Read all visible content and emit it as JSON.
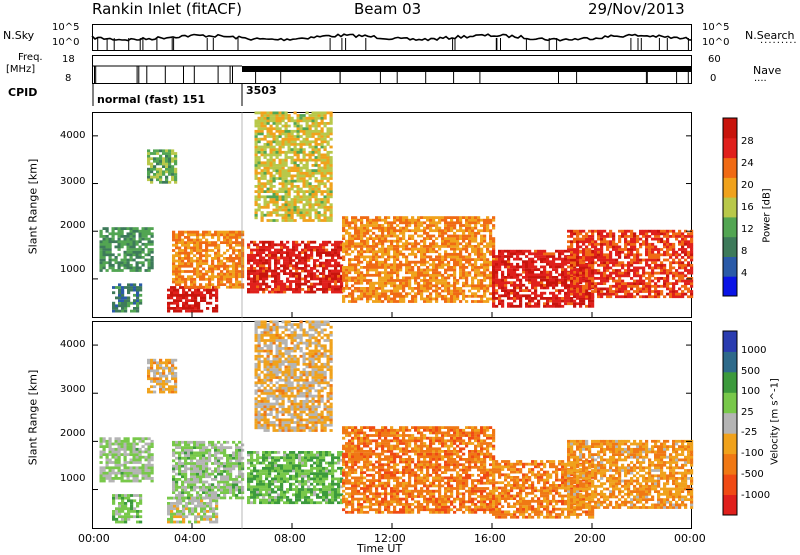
{
  "header": {
    "station": "Rankin Inlet (fitACF)",
    "beam": "Beam 03",
    "date": "29/Nov/2013"
  },
  "strip": {
    "nsky_label": "N.Sky",
    "nsky_ticks": [
      "10^5",
      "10^0"
    ],
    "nsearch_label": "N.Search",
    "nsearch_ticks": [
      "10^5",
      "10^0"
    ],
    "freq_label_1": "Freq.",
    "freq_label_2": "[MHz]",
    "freq_ticks": [
      "18",
      "8"
    ],
    "nave_label": "Nave",
    "nave_ticks": [
      "60",
      "0"
    ],
    "cpid_label": "CPID",
    "cpid_mode_1": "normal (fast) 151",
    "cpid_mode_2": "3503"
  },
  "colors": {
    "power": [
      "#0a14e6",
      "#2a5aa8",
      "#3d7a5a",
      "#52a552",
      "#b8c84a",
      "#f0a21c",
      "#f06a14",
      "#e0201c",
      "#c8140c"
    ],
    "velocity": [
      "#e0201c",
      "#f04a14",
      "#f07814",
      "#f0a21c",
      "#b4b4b4",
      "#78c84a",
      "#3c9a3c",
      "#2e6a8a",
      "#2a3cb0"
    ]
  },
  "chart_data": [
    {
      "type": "heatmap",
      "panel": "power",
      "ylabel": "Slant Range [km]",
      "ylim": [
        180,
        4500
      ],
      "yticks": [
        "1000",
        "2000",
        "3000",
        "4000"
      ],
      "colorbar_label": "Power [dB]",
      "colorbar_ticks": [
        "4",
        "8",
        "12",
        "16",
        "20",
        "24",
        "28"
      ],
      "colorbar_range": [
        0,
        30
      ],
      "echo_regions": [
        {
          "t0": 0.3,
          "t1": 2.4,
          "r0": 1150,
          "r1": 2050,
          "value": 10
        },
        {
          "t0": 0.8,
          "t1": 2.0,
          "r0": 300,
          "r1": 900,
          "value": 8
        },
        {
          "t0": 2.2,
          "t1": 3.3,
          "r0": 3000,
          "r1": 3700,
          "value": 12
        },
        {
          "t0": 3.0,
          "t1": 5.0,
          "r0": 300,
          "r1": 800,
          "value": 28
        },
        {
          "t0": 3.2,
          "t1": 6.0,
          "r0": 800,
          "r1": 2000,
          "value": 20
        },
        {
          "t0": 6.2,
          "t1": 10.0,
          "r0": 700,
          "r1": 1800,
          "value": 26
        },
        {
          "t0": 6.5,
          "t1": 9.5,
          "r0": 2200,
          "r1": 4500,
          "value": 16
        },
        {
          "t0": 10.0,
          "t1": 16.0,
          "r0": 500,
          "r1": 2300,
          "value": 20
        },
        {
          "t0": 16.0,
          "t1": 20.0,
          "r0": 400,
          "r1": 1600,
          "value": 26
        },
        {
          "t0": 19.0,
          "t1": 24.0,
          "r0": 600,
          "r1": 2000,
          "value": 24
        }
      ]
    },
    {
      "type": "heatmap",
      "panel": "velocity",
      "ylabel": "Slant Range [km]",
      "ylim": [
        180,
        4500
      ],
      "yticks": [
        "1000",
        "2000",
        "3000",
        "4000"
      ],
      "colorbar_label": "Velocity [m s^-1]",
      "colorbar_ticks": [
        "1000",
        "500",
        "100",
        "25",
        "-25",
        "-100",
        "-500",
        "-1000"
      ],
      "colorbar_range": [
        -1000,
        1000
      ],
      "xlabel": "Time UT",
      "xticks": [
        "00:00",
        "04:00",
        "08:00",
        "12:00",
        "16:00",
        "20:00",
        "00:00"
      ],
      "xlim": [
        0,
        24
      ],
      "echo_regions": [
        {
          "t0": 0.3,
          "t1": 2.4,
          "r0": 1150,
          "r1": 2050,
          "value": 120
        },
        {
          "t0": 0.8,
          "t1": 2.0,
          "r0": 300,
          "r1": 900,
          "value": 250
        },
        {
          "t0": 2.2,
          "t1": 3.3,
          "r0": 3000,
          "r1": 3700,
          "value": -150
        },
        {
          "t0": 3.0,
          "t1": 5.0,
          "r0": 300,
          "r1": 800,
          "value": 10
        },
        {
          "t0": 3.2,
          "t1": 6.0,
          "r0": 800,
          "r1": 2000,
          "value": 150
        },
        {
          "t0": 6.2,
          "t1": 10.0,
          "r0": 700,
          "r1": 1800,
          "value": 300
        },
        {
          "t0": 6.5,
          "t1": 9.5,
          "r0": 2200,
          "r1": 4500,
          "value": -150
        },
        {
          "t0": 10.0,
          "t1": 16.0,
          "r0": 500,
          "r1": 2300,
          "value": -450
        },
        {
          "t0": 16.0,
          "t1": 20.0,
          "r0": 400,
          "r1": 1600,
          "value": -400
        },
        {
          "t0": 19.0,
          "t1": 24.0,
          "r0": 600,
          "r1": 2000,
          "value": -300
        }
      ]
    }
  ]
}
